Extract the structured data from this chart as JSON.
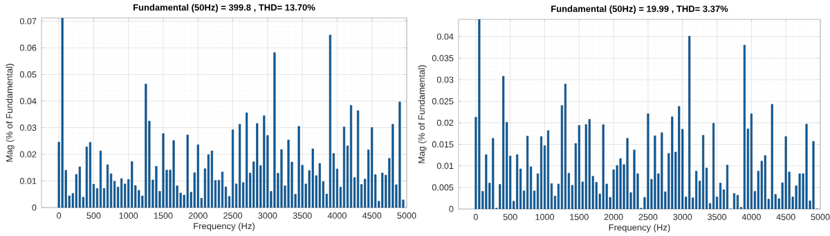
{
  "chart_data": [
    {
      "type": "bar",
      "title": "Fundamental (50Hz) = 399.8 , THD= 13.70%",
      "xlabel": "Frequency (Hz)",
      "ylabel": "Mag (% of Fundamental)",
      "color": "#0b5c9e",
      "grid": true,
      "xlim": [
        -250,
        5000
      ],
      "ylim": [
        0,
        0.0712
      ],
      "xticks": [
        0,
        500,
        1000,
        1500,
        2000,
        2500,
        3000,
        3500,
        4000,
        4500,
        5000
      ],
      "yticks": [
        0,
        0.01,
        0.02,
        0.03,
        0.04,
        0.05,
        0.06,
        0.07
      ],
      "x": [
        0,
        50,
        100,
        150,
        200,
        250,
        300,
        350,
        400,
        450,
        500,
        550,
        600,
        650,
        700,
        750,
        800,
        850,
        900,
        950,
        1000,
        1050,
        1100,
        1150,
        1200,
        1250,
        1300,
        1350,
        1400,
        1450,
        1500,
        1550,
        1600,
        1650,
        1700,
        1750,
        1800,
        1850,
        1900,
        1950,
        2000,
        2050,
        2100,
        2150,
        2200,
        2250,
        2300,
        2350,
        2400,
        2450,
        2500,
        2550,
        2600,
        2650,
        2700,
        2750,
        2800,
        2850,
        2900,
        2950,
        3000,
        3050,
        3100,
        3150,
        3200,
        3250,
        3300,
        3350,
        3400,
        3450,
        3500,
        3550,
        3600,
        3650,
        3700,
        3750,
        3800,
        3850,
        3900,
        3950,
        4000,
        4050,
        4100,
        4150,
        4200,
        4250,
        4300,
        4350,
        4400,
        4450,
        4500,
        4550,
        4600,
        4650,
        4700,
        4750,
        4800,
        4850,
        4900,
        4950
      ],
      "values": [
        0.0246,
        0.0712,
        0.014,
        0.0044,
        0.0053,
        0.0125,
        0.0153,
        0.0039,
        0.0228,
        0.0245,
        0.0088,
        0.0072,
        0.0213,
        0.0072,
        0.0161,
        0.0127,
        0.0099,
        0.0077,
        0.0109,
        0.0089,
        0.0106,
        0.0173,
        0.0083,
        0.0065,
        0.0044,
        0.0464,
        0.0325,
        0.0104,
        0.0155,
        0.0061,
        0.0278,
        0.0141,
        0.0141,
        0.0252,
        0.0082,
        0.0055,
        0.0047,
        0.0273,
        0.0058,
        0.0131,
        0.0236,
        0.0035,
        0.0146,
        0.0199,
        0.0213,
        0.0102,
        0.0103,
        0.0134,
        0.0078,
        0.0042,
        0.0292,
        0.0089,
        0.0313,
        0.0094,
        0.0356,
        0.013,
        0.0172,
        0.0316,
        0.0158,
        0.0345,
        0.0271,
        0.0061,
        0.0582,
        0.0129,
        0.0218,
        0.0082,
        0.0254,
        0.0171,
        0.005,
        0.0305,
        0.0159,
        0.0089,
        0.0139,
        0.0221,
        0.012,
        0.0166,
        0.0098,
        0.0051,
        0.0648,
        0.0203,
        0.0145,
        0.0077,
        0.0303,
        0.0232,
        0.0384,
        0.0113,
        0.0364,
        0.0087,
        0.0107,
        0.0217,
        0.0301,
        0.0124,
        0.0024,
        0.013,
        0.0122,
        0.0185,
        0.0313,
        0.0086,
        0.0397,
        0.0029
      ]
    },
    {
      "type": "bar",
      "title": "Fundamental (50Hz) = 19.99 , THD= 3.37%",
      "xlabel": "Frequency (Hz)",
      "ylabel": "Mag (% of Fundamental)",
      "color": "#0b5c9e",
      "grid": true,
      "xlim": [
        -250,
        5000
      ],
      "ylim": [
        0,
        0.044
      ],
      "xticks": [
        0,
        500,
        1000,
        1500,
        2000,
        2500,
        3000,
        3500,
        4000,
        4500,
        5000
      ],
      "yticks": [
        0,
        0.005,
        0.01,
        0.015,
        0.02,
        0.025,
        0.03,
        0.035,
        0.04
      ],
      "x": [
        0,
        50,
        100,
        150,
        200,
        250,
        300,
        350,
        400,
        450,
        500,
        550,
        600,
        650,
        700,
        750,
        800,
        850,
        900,
        950,
        1000,
        1050,
        1100,
        1150,
        1200,
        1250,
        1300,
        1350,
        1400,
        1450,
        1500,
        1550,
        1600,
        1650,
        1700,
        1750,
        1800,
        1850,
        1900,
        1950,
        2000,
        2050,
        2100,
        2150,
        2200,
        2250,
        2300,
        2350,
        2400,
        2450,
        2500,
        2550,
        2600,
        2650,
        2700,
        2750,
        2800,
        2850,
        2900,
        2950,
        3000,
        3050,
        3100,
        3150,
        3200,
        3250,
        3300,
        3350,
        3400,
        3450,
        3500,
        3550,
        3600,
        3650,
        3700,
        3750,
        3800,
        3850,
        3900,
        3950,
        4000,
        4050,
        4100,
        4150,
        4200,
        4250,
        4300,
        4350,
        4400,
        4450,
        4500,
        4550,
        4600,
        4650,
        4700,
        4750,
        4800,
        4850,
        4900,
        4950
      ],
      "values": [
        0.0213,
        0.044,
        0.0041,
        0.0126,
        0.006,
        0.0164,
        0.0002,
        0.0057,
        0.0308,
        0.0201,
        0.0123,
        0.0018,
        0.0126,
        0.0093,
        0.0042,
        0.0169,
        0.0098,
        0.0042,
        0.0082,
        0.0168,
        0.0147,
        0.0182,
        0.0059,
        0.003,
        0.0058,
        0.024,
        0.029,
        0.0083,
        0.0055,
        0.0152,
        0.0194,
        0.0063,
        0.0196,
        0.0208,
        0.0076,
        0.0062,
        0.0035,
        0.0196,
        0.0058,
        0.0027,
        0.0091,
        0.0101,
        0.0117,
        0.0103,
        0.0164,
        0.0038,
        0.0137,
        0.0082,
        0.0002,
        0.0027,
        0.0221,
        0.0069,
        0.017,
        0.0082,
        0.0177,
        0.004,
        0.0129,
        0.0214,
        0.0132,
        0.0238,
        0.0185,
        0.0028,
        0.0401,
        0.0026,
        0.0088,
        0.0065,
        0.0171,
        0.0095,
        0.0013,
        0.0199,
        0.0028,
        0.006,
        0.0045,
        0.0102,
        0,
        0.0036,
        0.0032,
        0.0004,
        0.038,
        0.0186,
        0.0221,
        0.0041,
        0.0088,
        0.0111,
        0.0124,
        0.0023,
        0.0243,
        0.0034,
        0.0024,
        0.0061,
        0.0168,
        0.0086,
        0.0028,
        0.0054,
        0.0082,
        0.0082,
        0.0197,
        0.0019,
        0.0157,
        0
      ]
    }
  ]
}
